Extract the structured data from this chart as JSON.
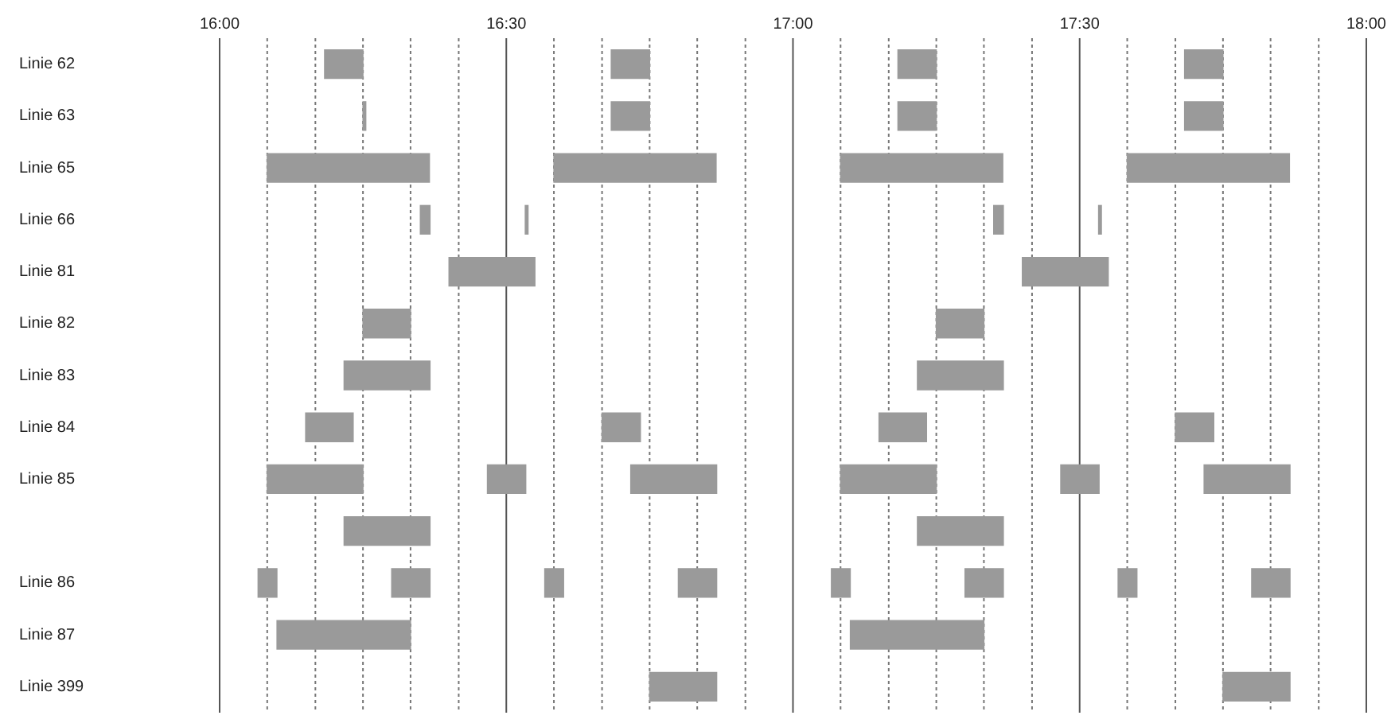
{
  "chart_data": {
    "type": "bar",
    "orientation": "horizontal",
    "grid": "x",
    "legend": false,
    "categories": [
      "Linie 62",
      "Linie 63",
      "Linie 65",
      "Linie 66",
      "Linie 81",
      "Linie 82",
      "Linie 83",
      "Linie 84",
      "Linie 85",
      null,
      "Linie 86",
      "Linie 87",
      "Linie 399"
    ],
    "xlim": [
      16,
      18
    ],
    "xticks": [
      {
        "value": 16,
        "label": "16:00"
      },
      {
        "value": 16.083,
        "label": null
      },
      {
        "value": 16.167,
        "label": null
      },
      {
        "value": 16.25,
        "label": null
      },
      {
        "value": 16.333,
        "label": null
      },
      {
        "value": 16.417,
        "label": null
      },
      {
        "value": 16.5,
        "label": "16:30"
      },
      {
        "value": 16.583,
        "label": null
      },
      {
        "value": 16.667,
        "label": null
      },
      {
        "value": 16.75,
        "label": null
      },
      {
        "value": 16.833,
        "label": null
      },
      {
        "value": 16.917,
        "label": null
      },
      {
        "value": 17,
        "label": "17:00"
      },
      {
        "value": 17.083,
        "label": null
      },
      {
        "value": 17.167,
        "label": null
      },
      {
        "value": 17.25,
        "label": null
      },
      {
        "value": 17.333,
        "label": null
      },
      {
        "value": 17.417,
        "label": null
      },
      {
        "value": 17.5,
        "label": "17:30"
      },
      {
        "value": 17.583,
        "label": null
      },
      {
        "value": 17.667,
        "label": null
      },
      {
        "value": 17.75,
        "label": null
      },
      {
        "value": 17.833,
        "label": null
      },
      {
        "value": 17.917,
        "label": null
      },
      {
        "value": 18,
        "label": "18:00"
      }
    ],
    "series": [
      {
        "color": "#9a9a9a",
        "base": [
          16.183,
          16.25,
          16.083,
          16.35,
          16.4,
          16.25,
          16.217,
          16.15,
          16.083,
          16.217,
          16.067,
          16.1,
          16.75
        ],
        "values": [
          0.067,
          0.005,
          0.283,
          0.017,
          0.15,
          0.083,
          0.15,
          0.083,
          0.167,
          0.15,
          0.033,
          0.233,
          0.117
        ]
      },
      {
        "color": "#9a9a9a",
        "base": [
          16.683,
          16.683,
          16.583,
          16.533,
          17.4,
          17.25,
          17.217,
          16.667,
          16.467,
          17.217,
          16.3,
          17.1,
          17.75
        ],
        "values": [
          0.067,
          0.067,
          0.283,
          0.005,
          0.15,
          0.083,
          0.15,
          0.067,
          0.067,
          0.15,
          0.067,
          0.233,
          0.117
        ]
      },
      {
        "color": "#9a9a9a",
        "base": [
          17.183,
          17.183,
          17.083,
          17.35,
          null,
          null,
          null,
          17.15,
          16.717,
          null,
          16.567,
          null,
          null
        ],
        "values": [
          0.067,
          0.067,
          0.283,
          0.017,
          null,
          null,
          null,
          0.083,
          0.15,
          null,
          0.033,
          null,
          null
        ]
      },
      {
        "color": "#9a9a9a",
        "base": [
          17.683,
          17.683,
          17.583,
          17.533,
          null,
          null,
          null,
          17.667,
          17.083,
          null,
          16.8,
          null,
          null
        ],
        "values": [
          0.067,
          0.067,
          0.283,
          0.005,
          null,
          null,
          null,
          0.067,
          0.167,
          null,
          0.067,
          null,
          null
        ]
      },
      {
        "color": "#9a9a9a",
        "base": [
          null,
          null,
          null,
          null,
          null,
          null,
          null,
          null,
          17.467,
          null,
          17.067,
          null,
          null
        ],
        "values": [
          null,
          null,
          null,
          null,
          null,
          null,
          null,
          null,
          0.067,
          null,
          0.033,
          null,
          null
        ]
      },
      {
        "color": "#9a9a9a",
        "base": [
          null,
          null,
          null,
          null,
          null,
          null,
          null,
          null,
          17.717,
          null,
          17.3,
          null,
          null
        ],
        "values": [
          null,
          null,
          null,
          null,
          null,
          null,
          null,
          null,
          0.15,
          null,
          0.067,
          null,
          null
        ]
      },
      {
        "color": "#9a9a9a",
        "base": [
          null,
          null,
          null,
          null,
          null,
          null,
          null,
          null,
          null,
          null,
          17.567,
          null,
          null
        ],
        "values": [
          null,
          null,
          null,
          null,
          null,
          null,
          null,
          null,
          null,
          null,
          0.033,
          null,
          null
        ]
      },
      {
        "color": "#9a9a9a",
        "base": [
          null,
          null,
          null,
          null,
          null,
          null,
          null,
          null,
          null,
          null,
          17.8,
          null,
          null
        ],
        "values": [
          null,
          null,
          null,
          null,
          null,
          null,
          null,
          null,
          null,
          null,
          0.067,
          null,
          null
        ]
      }
    ]
  }
}
